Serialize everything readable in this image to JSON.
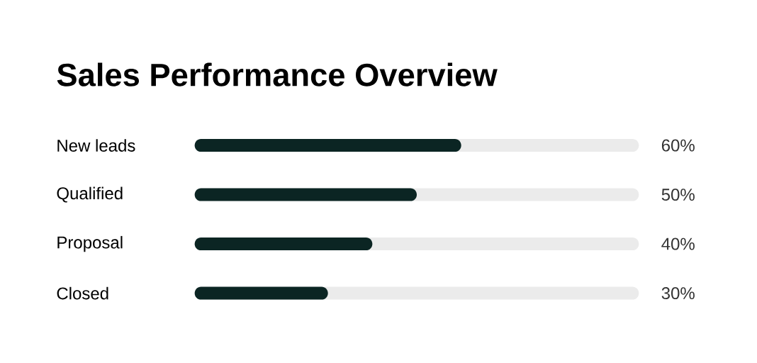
{
  "chart_data": {
    "type": "bar",
    "orientation": "horizontal",
    "title": "Sales Performance Overview",
    "categories": [
      "New leads",
      "Qualified",
      "Proposal",
      "Closed"
    ],
    "series": [
      {
        "color": "#0b2523",
        "values": [
          60,
          50,
          40,
          30
        ],
        "value_labels": [
          "60%",
          "50%",
          "40%",
          "30%"
        ]
      }
    ],
    "xlim": [
      0,
      100
    ]
  }
}
